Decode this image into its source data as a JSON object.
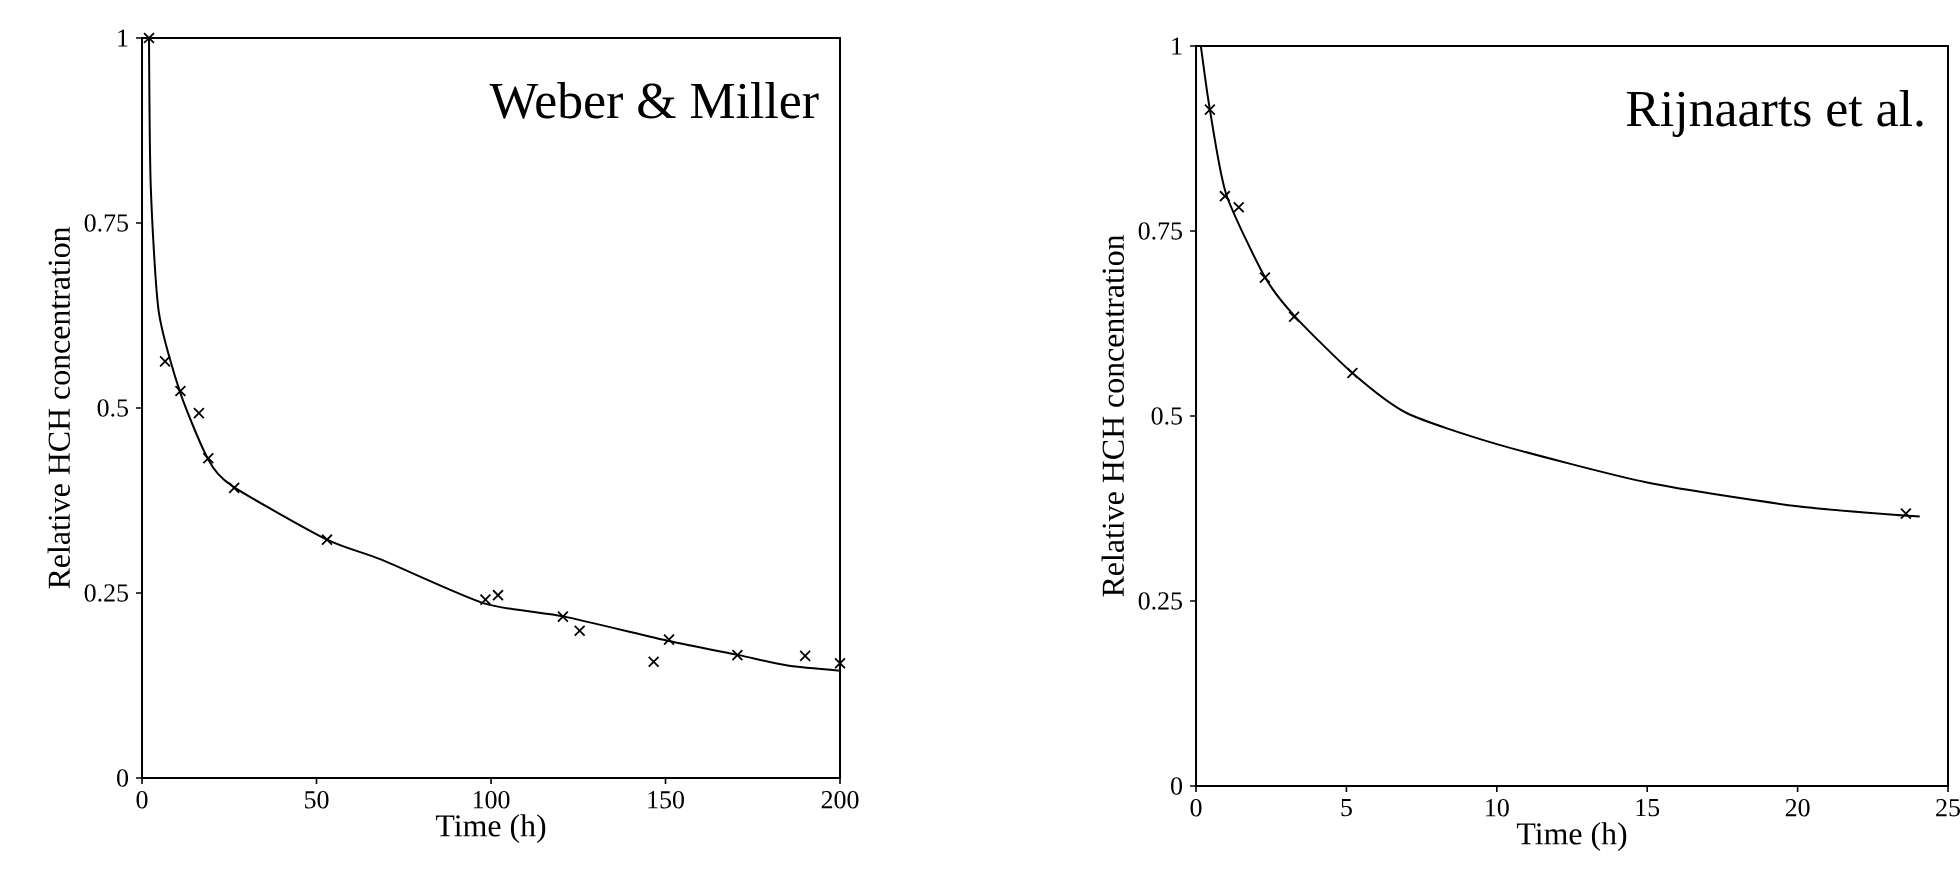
{
  "chart_data": [
    {
      "type": "scatter",
      "xlabel": "Time (h)",
      "ylabel": "Relative HCH concentration",
      "annotations": [
        "Weber & Miller"
      ],
      "xlim": [
        0,
        200
      ],
      "ylim": [
        0,
        1
      ],
      "xticks": [
        0,
        50,
        100,
        150,
        200
      ],
      "yticks": [
        0,
        0.25,
        0.5,
        0.75,
        1
      ],
      "marker": "cross",
      "series": [
        {
          "color": "#000000",
          "x": [
            2,
            6.6,
            11,
            16.3,
            19,
            26.4,
            53,
            98.4,
            102,
            120.6,
            125.4,
            146.6,
            151,
            170.6,
            190,
            200
          ],
          "values": [
            1.0,
            0.563,
            0.523,
            0.493,
            0.432,
            0.392,
            0.322,
            0.241,
            0.247,
            0.218,
            0.199,
            0.157,
            0.187,
            0.166,
            0.165,
            0.155
          ]
        },
        {
          "type": "line",
          "color": "#000000",
          "marker": "none",
          "x": [
            2,
            2.5,
            4.8,
            11,
            19,
            26,
            53,
            68.6,
            98,
            121,
            151,
            171,
            185,
            200
          ],
          "values": [
            1.0,
            0.8,
            0.63,
            0.52,
            0.43,
            0.394,
            0.322,
            0.295,
            0.236,
            0.218,
            0.185,
            0.166,
            0.152,
            0.145
          ]
        }
      ]
    },
    {
      "type": "scatter",
      "xlabel": "Time (h)",
      "ylabel": "Relative HCH concentration",
      "annotations": [
        "Rijnaarts et al."
      ],
      "xlim": [
        0,
        25
      ],
      "ylim": [
        0,
        1
      ],
      "xticks": [
        0,
        5,
        10,
        15,
        20,
        25
      ],
      "yticks": [
        0,
        0.25,
        0.5,
        0.75,
        1
      ],
      "marker": "cross",
      "series": [
        {
          "color": "#000000",
          "x": [
            0.46,
            0.96,
            1.42,
            2.29,
            3.26,
            5.2,
            23.6
          ],
          "values": [
            0.914,
            0.797,
            0.782,
            0.687,
            0.634,
            0.558,
            0.368
          ]
        },
        {
          "type": "line",
          "color": "#000000",
          "marker": "none",
          "x": [
            0.16,
            0.46,
            1,
            2.3,
            3.3,
            5.2,
            7,
            10,
            15,
            20,
            24.06
          ],
          "values": [
            1.0,
            0.914,
            0.8,
            0.687,
            0.634,
            0.558,
            0.504,
            0.462,
            0.41,
            0.378,
            0.364
          ]
        }
      ]
    }
  ]
}
